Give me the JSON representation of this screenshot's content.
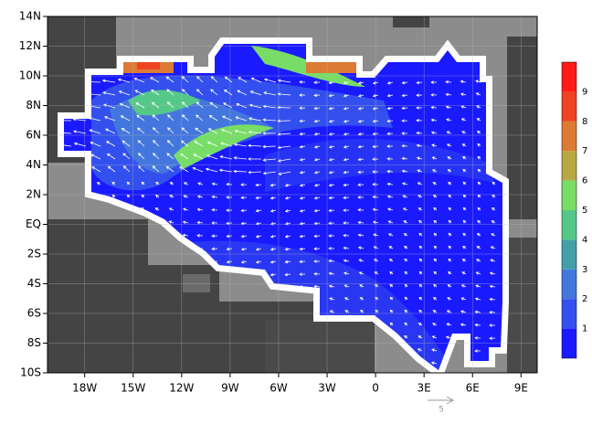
{
  "map": {
    "type": "map",
    "xlim": [
      -20.3,
      10
    ],
    "ylim": [
      -10,
      14
    ],
    "xticks": [
      {
        "value": -18,
        "label": "18W"
      },
      {
        "value": -15,
        "label": "15W"
      },
      {
        "value": -12,
        "label": "12W"
      },
      {
        "value": -9,
        "label": "9W"
      },
      {
        "value": -6,
        "label": "6W"
      },
      {
        "value": -3,
        "label": "3W"
      },
      0,
      {
        "value": 3,
        "label": "3E"
      },
      {
        "value": 6,
        "label": "6E"
      },
      {
        "value": 9,
        "label": "9E"
      }
    ],
    "yticks": [
      {
        "value": -10,
        "label": "10S"
      },
      {
        "value": -8,
        "label": "8S"
      },
      {
        "value": -6,
        "label": "6S"
      },
      {
        "value": -4,
        "label": "4S"
      },
      {
        "value": -2,
        "label": "2S"
      },
      {
        "value": 0,
        "label": "EQ"
      },
      {
        "value": 2,
        "label": "2N"
      },
      {
        "value": 4,
        "label": "4N"
      },
      {
        "value": 6,
        "label": "6N"
      },
      {
        "value": 8,
        "label": "8N"
      },
      {
        "value": 10,
        "label": "10N"
      },
      {
        "value": 12,
        "label": "12N"
      },
      {
        "value": 14,
        "label": "14N"
      }
    ],
    "colorbar": {
      "levels": [
        0,
        1,
        2,
        3,
        4,
        5,
        6,
        7,
        8,
        9,
        10
      ],
      "colors": [
        "#1a1aff",
        "#3350ee",
        "#4477dd",
        "#44a0a8",
        "#55c888",
        "#77dd66",
        "#b8a844",
        "#dd7a33",
        "#ee4422",
        "#ff1a1a"
      ],
      "ticks": [
        1,
        2,
        3,
        4,
        5,
        6,
        7,
        8,
        9
      ]
    },
    "reference_vector_label": "5"
  }
}
